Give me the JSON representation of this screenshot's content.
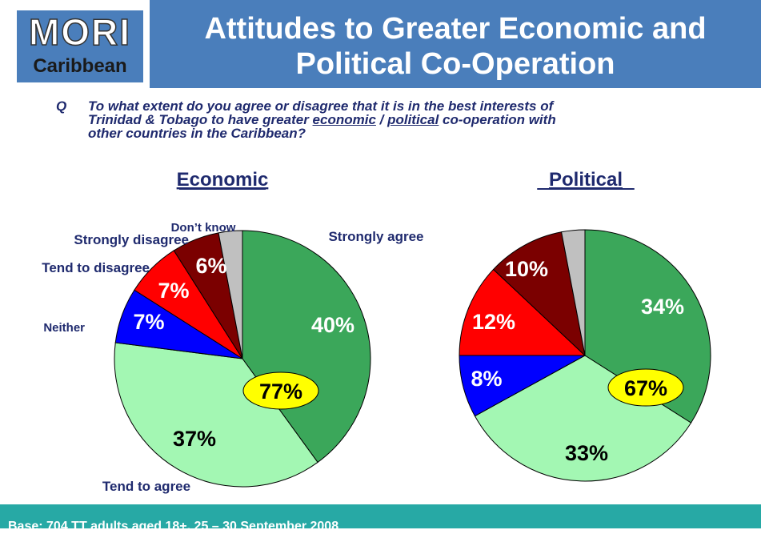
{
  "header": {
    "logo_main": "MORI",
    "logo_sub": "Caribbean",
    "title_line1": "Attitudes to Greater Economic and",
    "title_line2": "Political Co-Operation"
  },
  "question": {
    "prefix": "Q",
    "text_part1": "To what extent do you agree or disagree that it is in the best interests of\nTrinidad & Tobago to have greater ",
    "underline1": "economic",
    "separator": " / ",
    "underline2": "political",
    "text_part2": " co-operation with\nother countries in the Caribbean?"
  },
  "footer": {
    "base": "Base: 704 TT adults aged 18+, 25 – 30 September 2008"
  },
  "colors": {
    "strongly_agree": "#3BA75A",
    "tend_to_agree": "#A3F7B3",
    "neither": "#0000FF",
    "tend_to_disagree": "#FF0000",
    "strongly_disagree": "#7B0000",
    "dont_know": "#C0C0C0",
    "label_text": "#1F2A6E",
    "bubble": "#FFFF00",
    "header_bg": "#4A7EBB",
    "footer_bg": "#27A9A5"
  },
  "chart_data": [
    {
      "type": "pie",
      "title": "Economic",
      "categories": [
        "Strongly agree",
        "Tend to agree",
        "Neither",
        "Tend to disagree",
        "Strongly disagree",
        "Don’t know"
      ],
      "values": [
        40,
        37,
        7,
        7,
        6,
        3
      ],
      "value_labels": [
        "40%",
        "37%",
        "7%",
        "7%",
        "6%",
        ""
      ],
      "category_labels": [
        "Strongly agree",
        "Tend to agree",
        "Neither",
        "Tend to disagree",
        "Strongly disagree",
        "Don’t know"
      ],
      "summary_label": "77%"
    },
    {
      "type": "pie",
      "title": "Political",
      "categories": [
        "Strongly agree",
        "Tend to agree",
        "Neither",
        "Tend to disagree",
        "Strongly disagree",
        "Don’t know"
      ],
      "values": [
        34,
        33,
        8,
        12,
        10,
        3
      ],
      "value_labels": [
        "34%",
        "33%",
        "8%",
        "12%",
        "10%",
        ""
      ],
      "summary_label": "67%"
    }
  ]
}
